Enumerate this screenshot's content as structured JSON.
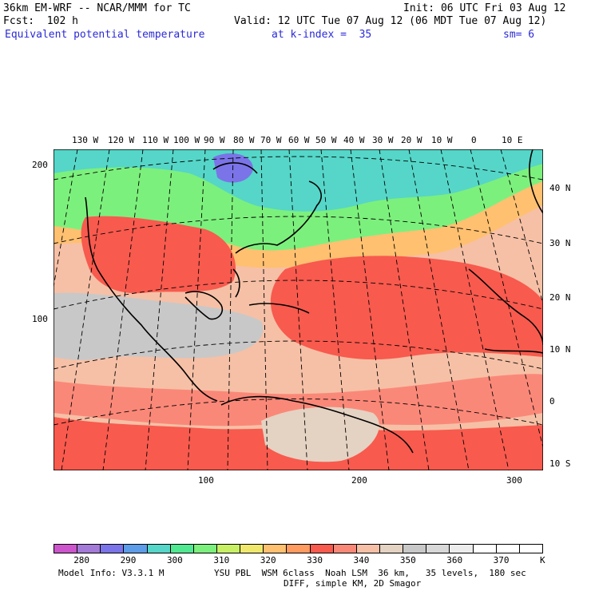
{
  "header": {
    "model": "36km EM-WRF -- NCAR/MMM for TC",
    "init": "Init: 06 UTC Fri 03 Aug 12",
    "fcst": "Fcst:  102 h",
    "valid": "Valid: 12 UTC Tue 07 Aug 12 (06 MDT Tue 07 Aug 12)",
    "field": "Equivalent potential temperature",
    "level": "at k-index =  35",
    "smooth": "sm= 6"
  },
  "map": {
    "lon_labels": [
      "130 W",
      "120 W",
      "110 W",
      "100 W",
      "90 W",
      "80 W",
      "70 W",
      "60 W",
      "50 W",
      "40 W",
      "30 W",
      "20 W",
      "10 W",
      "0",
      "10 E"
    ],
    "lat_labels": [
      "40 N",
      "30 N",
      "20 N",
      "10 N",
      "0",
      "10 S"
    ],
    "grid_y_labels": [
      "200",
      "100"
    ],
    "grid_x_labels": [
      "100",
      "200",
      "300"
    ]
  },
  "colorbar": {
    "colors": [
      "#cc55cc",
      "#a47ad8",
      "#7a74e8",
      "#5d9ce8",
      "#55d6c8",
      "#50e890",
      "#7cf07c",
      "#c8f064",
      "#f0e86c",
      "#ffc070",
      "#ff9a60",
      "#f85a4e",
      "#fa8878",
      "#f6c0a6",
      "#e4d2c2",
      "#c8c8c8",
      "#d8d8d8",
      "#ececec",
      "#ffffff",
      "#ffffff",
      "#ffffff"
    ],
    "tick_labels": [
      "280",
      "290",
      "300",
      "310",
      "320",
      "330",
      "340",
      "350",
      "360",
      "370"
    ],
    "unit": "K"
  },
  "footer": {
    "model_info": "Model Info: V3.3.1 M",
    "physics": "YSU PBL  WSM 6class  Noah LSM  36 km,   35 levels,  180 sec",
    "diff": "DIFF, simple KM, 2D Smagor"
  }
}
